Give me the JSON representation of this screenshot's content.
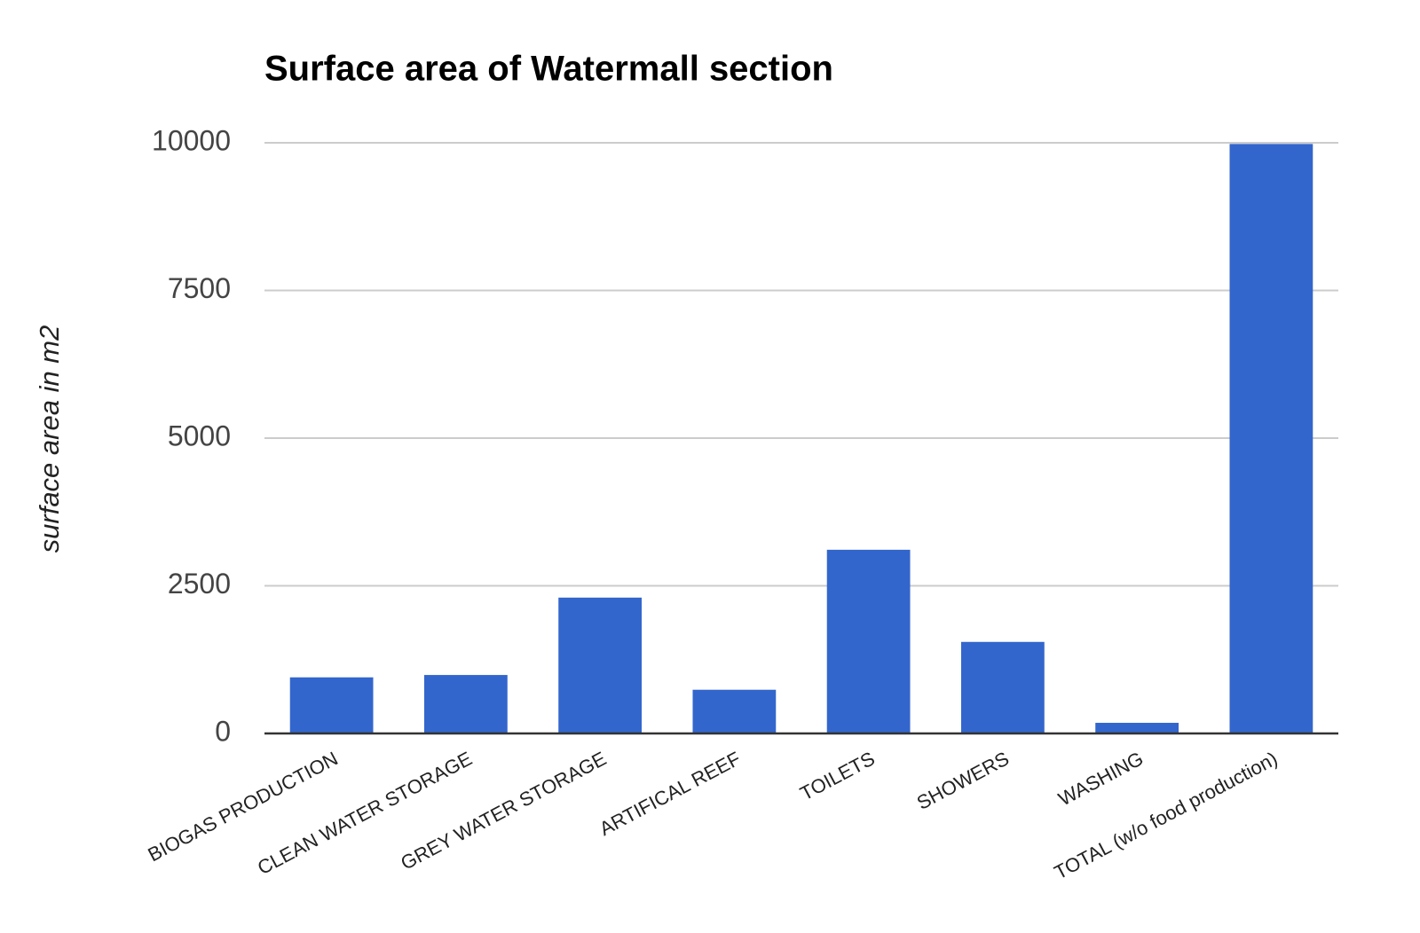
{
  "chart_data": {
    "type": "bar",
    "title": "Surface area of Watermall section",
    "y_label": "surface area in m2",
    "categories": [
      "BIOGAS PRODUCTION",
      "CLEAN WATER STORAGE",
      "GREY WATER STORAGE",
      "ARTIFICAL REEF",
      "TOILETS",
      "SHOWERS",
      "WASHING",
      "TOTAL (w/o food production)"
    ],
    "values": [
      950,
      990,
      2300,
      740,
      3110,
      1550,
      180,
      9980
    ],
    "color": "#3366cc",
    "ylim": [
      0,
      10000
    ],
    "yticks": [
      0,
      2500,
      5000,
      7500,
      10000
    ],
    "grid": true
  }
}
